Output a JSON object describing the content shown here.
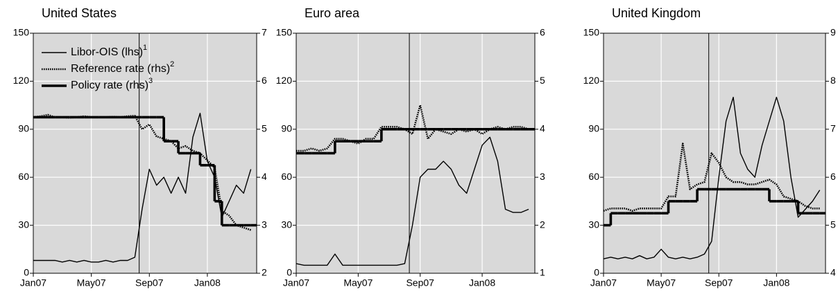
{
  "chart_data": [
    {
      "type": "line",
      "title": "United States",
      "legend": "upper left",
      "grid": true,
      "marker_x": 7.3,
      "x": [
        0,
        0.5,
        1,
        1.5,
        2,
        2.5,
        3,
        3.5,
        4,
        4.5,
        5,
        5.5,
        6,
        6.5,
        7,
        7.5,
        8,
        8.5,
        9,
        9.5,
        10,
        10.5,
        11,
        11.5,
        12,
        12.5,
        13,
        13.5,
        14,
        14.5,
        15
      ],
      "xlim": [
        0,
        15.4
      ],
      "xticks": [
        {
          "value": 0,
          "label": "Jan07"
        },
        {
          "value": 4,
          "label": "May07"
        },
        {
          "value": 8,
          "label": "Sep07"
        },
        {
          "value": 12,
          "label": "Jan08"
        }
      ],
      "ylim": [
        0,
        150
      ],
      "yticks": [
        0,
        30,
        60,
        90,
        120,
        150
      ],
      "y2lim": [
        2,
        7
      ],
      "y2ticks": [
        2,
        3,
        4,
        5,
        6,
        7
      ],
      "series": [
        {
          "name": "Libor-OIS (lhs)",
          "footnote": "1",
          "color": "#000000",
          "style": "solid",
          "values": [
            8,
            8,
            8,
            8,
            7,
            8,
            7,
            8,
            7,
            7,
            8,
            7,
            8,
            8,
            10,
            40,
            65,
            55,
            60,
            50,
            60,
            50,
            85,
            100,
            70,
            60,
            35,
            45,
            55,
            50,
            65
          ]
        },
        {
          "name": "Reference rate (rhs)",
          "footnote": "2",
          "color": "#000000",
          "style": "dotted",
          "axis": "y2",
          "values": [
            5.25,
            5.27,
            5.3,
            5.25,
            5.25,
            5.24,
            5.25,
            5.27,
            5.25,
            5.25,
            5.25,
            5.26,
            5.25,
            5.27,
            5.28,
            5.0,
            5.1,
            4.85,
            4.8,
            4.75,
            4.6,
            4.65,
            4.55,
            4.5,
            4.35,
            4.2,
            3.3,
            3.2,
            3.0,
            2.95,
            2.9
          ]
        },
        {
          "name": "Policy rate (rhs)",
          "footnote": "3",
          "color": "#000000",
          "style": "step",
          "axis": "y2",
          "values": [
            5.25,
            5.25,
            5.25,
            5.25,
            5.25,
            5.25,
            5.25,
            5.25,
            5.25,
            5.25,
            5.25,
            5.25,
            5.25,
            5.25,
            5.25,
            5.25,
            5.25,
            5.25,
            4.75,
            4.75,
            4.5,
            4.5,
            4.5,
            4.25,
            4.25,
            3.5,
            3.0,
            3.0,
            3.0,
            3.0,
            3.0
          ]
        }
      ]
    },
    {
      "type": "line",
      "title": "Euro area",
      "grid": true,
      "marker_x": 7.3,
      "x": [
        0,
        0.5,
        1,
        1.5,
        2,
        2.5,
        3,
        3.5,
        4,
        4.5,
        5,
        5.5,
        6,
        6.5,
        7,
        7.5,
        8,
        8.5,
        9,
        9.5,
        10,
        10.5,
        11,
        11.5,
        12,
        12.5,
        13,
        13.5,
        14,
        14.5,
        15
      ],
      "xlim": [
        0,
        15.4
      ],
      "xticks": [
        {
          "value": 0,
          "label": "Jan07"
        },
        {
          "value": 4,
          "label": "May07"
        },
        {
          "value": 8,
          "label": "Sep07"
        },
        {
          "value": 12,
          "label": "Jan08"
        }
      ],
      "ylim": [
        0,
        150
      ],
      "yticks": [
        0,
        30,
        60,
        90,
        120,
        150
      ],
      "y2lim": [
        1,
        6
      ],
      "y2ticks": [
        1,
        2,
        3,
        4,
        5,
        6
      ],
      "series": [
        {
          "color": "#000000",
          "style": "solid",
          "values": [
            6,
            5,
            5,
            5,
            5,
            12,
            5,
            5,
            5,
            5,
            5,
            5,
            5,
            5,
            6,
            30,
            60,
            65,
            65,
            70,
            65,
            55,
            50,
            65,
            80,
            85,
            70,
            40,
            38,
            38,
            40
          ]
        },
        {
          "color": "#000000",
          "style": "dotted",
          "axis": "y2",
          "values": [
            3.55,
            3.55,
            3.6,
            3.55,
            3.6,
            3.8,
            3.8,
            3.75,
            3.7,
            3.8,
            3.8,
            4.05,
            4.05,
            4.05,
            4.0,
            3.9,
            4.5,
            3.8,
            4.0,
            3.95,
            3.9,
            4.0,
            3.95,
            4.0,
            3.9,
            4.0,
            4.05,
            4.0,
            4.05,
            4.05,
            4.0
          ]
        },
        {
          "color": "#000000",
          "style": "step",
          "axis": "y2",
          "values": [
            3.5,
            3.5,
            3.5,
            3.5,
            3.5,
            3.75,
            3.75,
            3.75,
            3.75,
            3.75,
            3.75,
            4.0,
            4.0,
            4.0,
            4.0,
            4.0,
            4.0,
            4.0,
            4.0,
            4.0,
            4.0,
            4.0,
            4.0,
            4.0,
            4.0,
            4.0,
            4.0,
            4.0,
            4.0,
            4.0,
            4.0
          ]
        }
      ]
    },
    {
      "type": "line",
      "title": "United Kingdom",
      "grid": true,
      "marker_x": 7.3,
      "x": [
        0,
        0.5,
        1,
        1.5,
        2,
        2.5,
        3,
        3.5,
        4,
        4.5,
        5,
        5.5,
        6,
        6.5,
        7,
        7.5,
        8,
        8.5,
        9,
        9.5,
        10,
        10.5,
        11,
        11.5,
        12,
        12.5,
        13,
        13.5,
        14,
        14.5,
        15
      ],
      "xlim": [
        0,
        15.4
      ],
      "xticks": [
        {
          "value": 0,
          "label": "Jan07"
        },
        {
          "value": 4,
          "label": "May07"
        },
        {
          "value": 8,
          "label": "Sep07"
        },
        {
          "value": 12,
          "label": "Jan08"
        }
      ],
      "ylim": [
        0,
        150
      ],
      "yticks": [
        0,
        30,
        60,
        90,
        120,
        150
      ],
      "y2lim": [
        4,
        9
      ],
      "y2ticks": [
        4,
        5,
        6,
        7,
        8,
        9
      ],
      "series": [
        {
          "color": "#000000",
          "style": "solid",
          "values": [
            9,
            10,
            9,
            10,
            9,
            11,
            9,
            10,
            15,
            10,
            9,
            10,
            9,
            10,
            12,
            20,
            60,
            95,
            110,
            75,
            65,
            60,
            80,
            95,
            110,
            95,
            60,
            35,
            40,
            45,
            52
          ]
        },
        {
          "color": "#000000",
          "style": "dotted",
          "axis": "y2",
          "values": [
            5.3,
            5.35,
            5.35,
            5.35,
            5.3,
            5.35,
            5.35,
            5.35,
            5.35,
            5.6,
            5.6,
            6.7,
            5.75,
            5.85,
            5.9,
            6.5,
            6.3,
            6.0,
            5.9,
            5.9,
            5.85,
            5.85,
            5.9,
            5.95,
            5.85,
            5.6,
            5.55,
            5.5,
            5.4,
            5.35,
            5.35
          ]
        },
        {
          "color": "#000000",
          "style": "step",
          "axis": "y2",
          "values": [
            5.0,
            5.25,
            5.25,
            5.25,
            5.25,
            5.25,
            5.25,
            5.25,
            5.25,
            5.5,
            5.5,
            5.5,
            5.5,
            5.75,
            5.75,
            5.75,
            5.75,
            5.75,
            5.75,
            5.75,
            5.75,
            5.75,
            5.75,
            5.5,
            5.5,
            5.5,
            5.5,
            5.25,
            5.25,
            5.25,
            5.25
          ]
        }
      ]
    }
  ]
}
